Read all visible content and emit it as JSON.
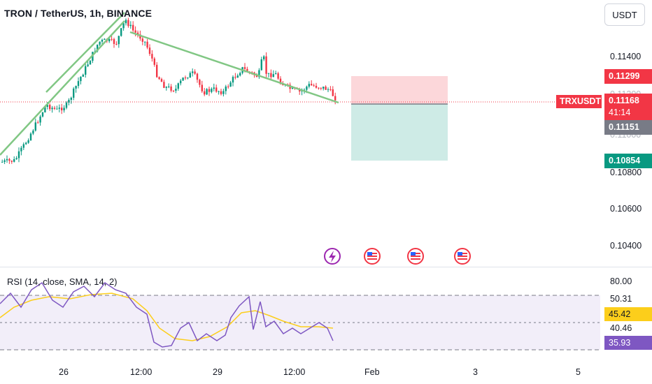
{
  "header": {
    "title": "TRON / TetherUS, 1h, BINANCE",
    "currency_button": "USDT"
  },
  "price_axis": {
    "ticks": [
      "0.11400",
      "0.11200",
      "0.11000",
      "0.10800",
      "0.10600",
      "0.10400"
    ]
  },
  "price_tags": {
    "stop": {
      "value": "0.11299",
      "color": "#f23645"
    },
    "symbol": "TRXUSDT",
    "current": {
      "value": "0.11168",
      "countdown": "41:14",
      "color": "#f23645"
    },
    "entry": {
      "value": "0.11151",
      "color": "#787b86"
    },
    "target": {
      "value": "0.10854",
      "color": "#089981"
    }
  },
  "events": {
    "icons": [
      "lightning-event-icon",
      "us-flag-event-icon",
      "us-flag-event-icon",
      "us-flag-event-icon"
    ]
  },
  "rsi": {
    "label": "RSI (14, close, SMA, 14, 2)",
    "axis_ticks": [
      "80.00",
      "50.31",
      "40.46"
    ],
    "sma_value": "45.42",
    "rsi_value": "35.93",
    "sma_color": "#fcce1b",
    "rsi_color": "#7e57c2"
  },
  "time_axis": {
    "ticks": [
      "26",
      "12:00",
      "29",
      "12:00",
      "Feb",
      "3",
      "5"
    ]
  },
  "colors": {
    "up": "#089981",
    "down": "#f23645",
    "trendline": "#81c784"
  }
}
